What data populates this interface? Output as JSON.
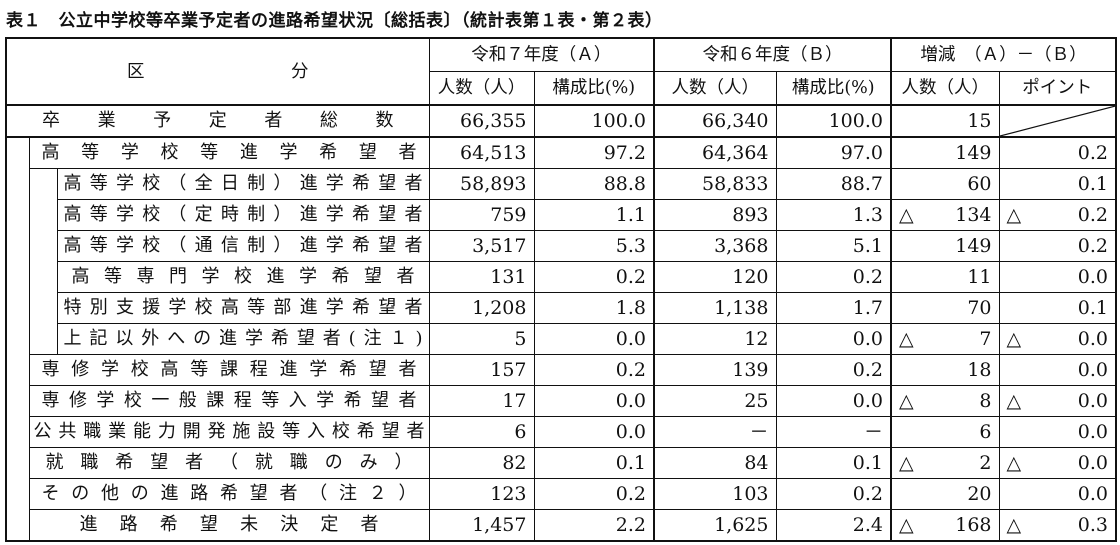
{
  "title": "表１　公立中学校等卒業予定者の進路希望状況〔総括表〕（統計表第１表・第２表）",
  "header": {
    "category": "区　　　　　　分",
    "group_a": "令和７年度（Ａ）",
    "group_b": "令和６年度（Ｂ）",
    "group_diff": "増減　（Ａ）－（Ｂ）",
    "count": "人数（人）",
    "ratio": "構成比(%)",
    "count_b": "人数（人）",
    "ratio_b": "構成比(%)",
    "count_diff": "人数（人）",
    "point": "ポイント"
  },
  "rows": [
    {
      "label": "卒業予定者総数",
      "a_count": "66,355",
      "a_ratio": "100.0",
      "b_count": "66,340",
      "b_ratio": "100.0",
      "d_count": "15",
      "d_point": ""
    },
    {
      "label": "高等学校等進学希望者",
      "a_count": "64,513",
      "a_ratio": "97.2",
      "b_count": "64,364",
      "b_ratio": "97.0",
      "d_count": "149",
      "d_point": "0.2"
    },
    {
      "label": "高等学校（全日制）進学希望者",
      "a_count": "58,893",
      "a_ratio": "88.8",
      "b_count": "58,833",
      "b_ratio": "88.7",
      "d_count": "60",
      "d_point": "0.1"
    },
    {
      "label": "高等学校（定時制）進学希望者",
      "a_count": "759",
      "a_ratio": "1.1",
      "b_count": "893",
      "b_ratio": "1.3",
      "d_count": "△ 134",
      "d_point": "△ 0.2"
    },
    {
      "label": "高等学校（通信制）進学希望者",
      "a_count": "3,517",
      "a_ratio": "5.3",
      "b_count": "3,368",
      "b_ratio": "5.1",
      "d_count": "149",
      "d_point": "0.2"
    },
    {
      "label": "高等専門学校進学希望者",
      "a_count": "131",
      "a_ratio": "0.2",
      "b_count": "120",
      "b_ratio": "0.2",
      "d_count": "11",
      "d_point": "0.0"
    },
    {
      "label": "特別支援学校高等部進学希望者",
      "a_count": "1,208",
      "a_ratio": "1.8",
      "b_count": "1,138",
      "b_ratio": "1.7",
      "d_count": "70",
      "d_point": "0.1"
    },
    {
      "label": "上記以外への進学希望者(注１)",
      "a_count": "5",
      "a_ratio": "0.0",
      "b_count": "12",
      "b_ratio": "0.0",
      "d_count": "△ 7",
      "d_point": "△ 0.0"
    },
    {
      "label": "専修学校高等課程進学希望者",
      "a_count": "157",
      "a_ratio": "0.2",
      "b_count": "139",
      "b_ratio": "0.2",
      "d_count": "18",
      "d_point": "0.0"
    },
    {
      "label": "専修学校一般課程等入学希望者",
      "a_count": "17",
      "a_ratio": "0.0",
      "b_count": "25",
      "b_ratio": "0.0",
      "d_count": "△ 8",
      "d_point": "△ 0.0"
    },
    {
      "label": "公共職業能力開発施設等入校希望者",
      "a_count": "6",
      "a_ratio": "0.0",
      "b_count": "－",
      "b_ratio": "－",
      "d_count": "6",
      "d_point": "0.0"
    },
    {
      "label": "就職希望者（就職のみ）",
      "a_count": "82",
      "a_ratio": "0.1",
      "b_count": "84",
      "b_ratio": "0.1",
      "d_count": "△ 2",
      "d_point": "△ 0.0"
    },
    {
      "label": "その他の進路希望者（注２）",
      "a_count": "123",
      "a_ratio": "0.2",
      "b_count": "103",
      "b_ratio": "0.2",
      "d_count": "20",
      "d_point": "0.0"
    },
    {
      "label": "進路希望未決定者",
      "a_count": "1,457",
      "a_ratio": "2.2",
      "b_count": "1,625",
      "b_ratio": "2.4",
      "d_count": "△ 168",
      "d_point": "△ 0.3"
    }
  ]
}
